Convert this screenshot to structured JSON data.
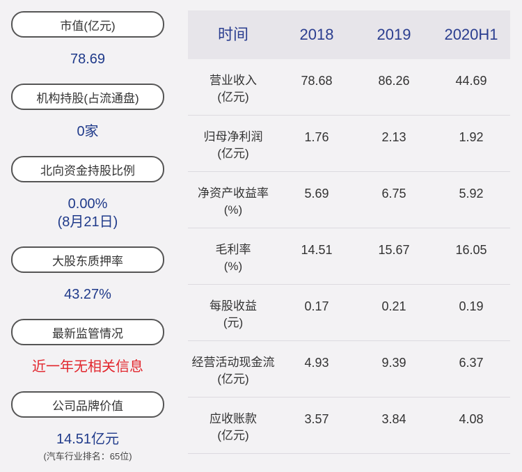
{
  "left_panel": {
    "items": [
      {
        "label": "市值(亿元)",
        "value": [
          "78.69"
        ]
      },
      {
        "label": "机构持股(占流通盘)",
        "value": [
          "0家"
        ]
      },
      {
        "label": "北向资金持股比例",
        "value": [
          "0.00%",
          "(8月21日)"
        ]
      },
      {
        "label": "大股东质押率",
        "value": [
          "43.27%"
        ]
      },
      {
        "label": "最新监管情况",
        "value": [
          "近一年无相关信息"
        ]
      },
      {
        "label": "公司品牌价值",
        "value": [
          "14.51亿元"
        ],
        "note": "(汽车行业排名：65位)"
      }
    ]
  },
  "table": {
    "header": [
      "时间",
      "2018",
      "2019",
      "2020H1"
    ],
    "rows": [
      [
        [
          "营业收入",
          "(亿元)"
        ],
        "78.68",
        "86.26",
        "44.69"
      ],
      [
        [
          "归母净利润",
          "(亿元)"
        ],
        "1.76",
        "2.13",
        "1.92"
      ],
      [
        [
          "净资产收益率",
          "(%)"
        ],
        "5.69",
        "6.75",
        "5.92"
      ],
      [
        [
          "毛利率",
          "(%)"
        ],
        "14.51",
        "15.67",
        "16.05"
      ],
      [
        [
          "每股收益",
          "(元)"
        ],
        "0.17",
        "0.21",
        "0.19"
      ],
      [
        [
          "经营活动现金流",
          "(亿元)"
        ],
        "4.93",
        "9.39",
        "6.37"
      ],
      [
        [
          "应收账款",
          "(亿元)"
        ],
        "3.57",
        "3.84",
        "4.08"
      ]
    ]
  }
}
